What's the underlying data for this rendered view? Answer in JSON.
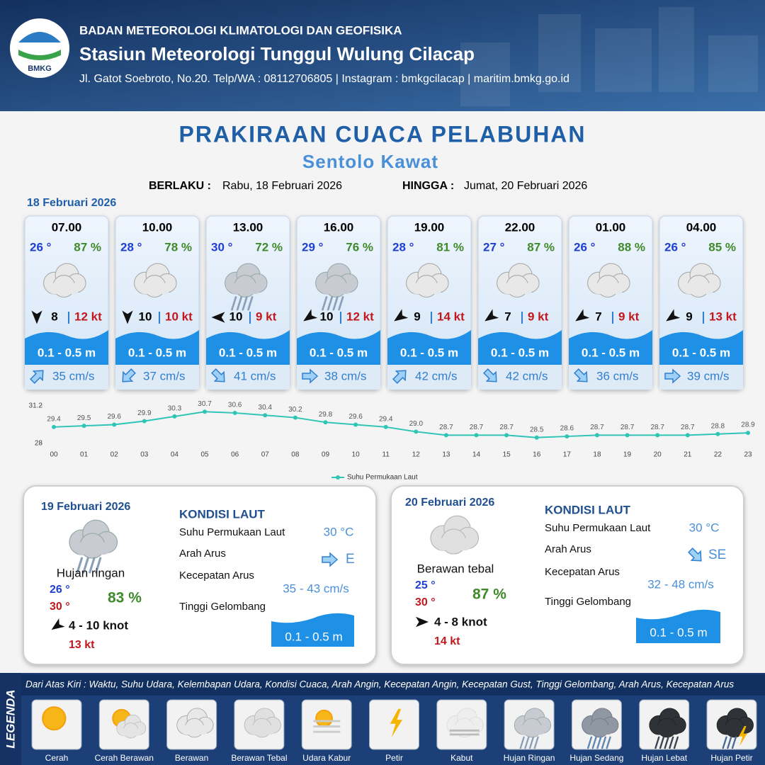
{
  "header": {
    "logo": "BMKG",
    "organization": "BADAN METEOROLOGI KLIMATOLOGI DAN GEOFISIKA",
    "station": "Stasiun Meteorologi Tunggul Wulung Cilacap",
    "address": "Jl. Gatot Soebroto, No.20. Telp/WA : 08112706805 | Instagram : bmkgcilacap | maritim.bmkg.go.id"
  },
  "title": "PRAKIRAAN CUACA PELABUHAN",
  "location": "Sentolo Kawat",
  "validity": {
    "from_label": "BERLAKU :",
    "from": "Rabu, 18 Februari 2026",
    "to_label": "HINGGA :",
    "to": "Jumat, 20 Februari 2026"
  },
  "day1": {
    "date": "18 Februari 2026",
    "slots": [
      {
        "time": "07.00",
        "temp": "26 °",
        "humidity": "87 %",
        "wind": "8",
        "gust": "12 kt",
        "wave": "0.1 - 0.5 m",
        "current": "35 cm/s"
      },
      {
        "time": "10.00",
        "temp": "28 °",
        "humidity": "78 %",
        "wind": "10",
        "gust": "10 kt",
        "wave": "0.1 - 0.5 m",
        "current": "37 cm/s"
      },
      {
        "time": "13.00",
        "temp": "30 °",
        "humidity": "72 %",
        "wind": "10",
        "gust": "9 kt",
        "wave": "0.1 - 0.5 m",
        "current": "41 cm/s"
      },
      {
        "time": "16.00",
        "temp": "29 °",
        "humidity": "76 %",
        "wind": "10",
        "gust": "12 kt",
        "wave": "0.1 - 0.5 m",
        "current": "38 cm/s"
      },
      {
        "time": "19.00",
        "temp": "28 °",
        "humidity": "81 %",
        "wind": "9",
        "gust": "14 kt",
        "wave": "0.1 - 0.5 m",
        "current": "42 cm/s"
      },
      {
        "time": "22.00",
        "temp": "27 °",
        "humidity": "87 %",
        "wind": "7",
        "gust": "9 kt",
        "wave": "0.1 - 0.5 m",
        "current": "42 cm/s"
      },
      {
        "time": "01.00",
        "temp": "26 °",
        "humidity": "88 %",
        "wind": "7",
        "gust": "9 kt",
        "wave": "0.1 - 0.5 m",
        "current": "36 cm/s"
      },
      {
        "time": "04.00",
        "temp": "26 °",
        "humidity": "85 %",
        "wind": "9",
        "gust": "13 kt",
        "wave": "0.1 - 0.5 m",
        "current": "39 cm/s"
      }
    ]
  },
  "chart_data": {
    "type": "line",
    "categories": [
      "00",
      "01",
      "02",
      "03",
      "04",
      "05",
      "06",
      "07",
      "08",
      "09",
      "10",
      "11",
      "12",
      "13",
      "14",
      "15",
      "16",
      "17",
      "18",
      "19",
      "20",
      "21",
      "22",
      "23"
    ],
    "series": [
      {
        "name": "Suhu Permukaan Laut",
        "color": "#2ec4b6",
        "values": [
          29.4,
          29.5,
          29.6,
          29.9,
          30.3,
          30.7,
          30.6,
          30.4,
          30.2,
          29.8,
          29.6,
          29.4,
          29.0,
          28.7,
          28.7,
          28.7,
          28.5,
          28.6,
          28.7,
          28.7,
          28.7,
          28.7,
          28.8,
          28.9
        ],
        "value_labels": [
          "29.4",
          "29.5",
          "29.6",
          "29.9",
          "30.3",
          "30.7",
          "30.6",
          "30.4",
          "30.2",
          "29.8",
          "29.6",
          "29.4",
          "29.0",
          "28.7",
          "28.7",
          "28.7",
          "28.5",
          "28.6",
          "28.7",
          "28.7",
          "28.7",
          "28.7",
          "28.8",
          "28.9"
        ]
      }
    ],
    "ylim": [
      28,
      31.2
    ],
    "yticks": [
      28,
      31.2
    ]
  },
  "days": [
    {
      "date": "19 Februari 2026",
      "condition": "Hujan ringan",
      "temp_min": "26 °",
      "temp_max": "30 °",
      "humidity": "83 %",
      "wind": "4  - 10 knot",
      "gust": "13 kt",
      "sea": {
        "title": "KONDISI LAUT",
        "sst_label": "Suhu Permukaan Laut",
        "sst": "30 °C",
        "dir_label": "Arah Arus",
        "dir": "E",
        "speed_label": "Kecepatan Arus",
        "speed": "35 -  43 cm/s",
        "wave_label": "Tinggi Gelombang",
        "wave": "0.1 - 0.5 m"
      }
    },
    {
      "date": "20 Februari 2026",
      "condition": "Berawan tebal",
      "temp_min": "25 °",
      "temp_max": "30 °",
      "humidity": "87 %",
      "wind": "4  - 8 knot",
      "gust": "14 kt",
      "sea": {
        "title": "KONDISI LAUT",
        "sst_label": "Suhu Permukaan Laut",
        "sst": "30 °C",
        "dir_label": "Arah Arus",
        "dir": "SE",
        "speed_label": "Kecepatan Arus",
        "speed": "32 - 48 cm/s",
        "wave_label": "Tinggi Gelombang",
        "wave": "0.1 - 0.5 m"
      }
    }
  ],
  "legend": {
    "title": "LEGENDA",
    "description": "Dari Atas Kiri : Waktu, Suhu Udara, Kelembapan Udara, Kondisi Cuaca, Arah Angin, Kecepatan Angin, Kecepatan Gust, Tinggi Gelombang, Arah Arus, Kecepatan Arus",
    "items": [
      "Cerah",
      "Cerah Berawan",
      "Berawan",
      "Berawan Tebal",
      "Udara Kabur",
      "Petir",
      "Kabut",
      "Hujan Ringan",
      "Hujan Sedang",
      "Hujan Lebat",
      "Hujan Petir"
    ]
  }
}
